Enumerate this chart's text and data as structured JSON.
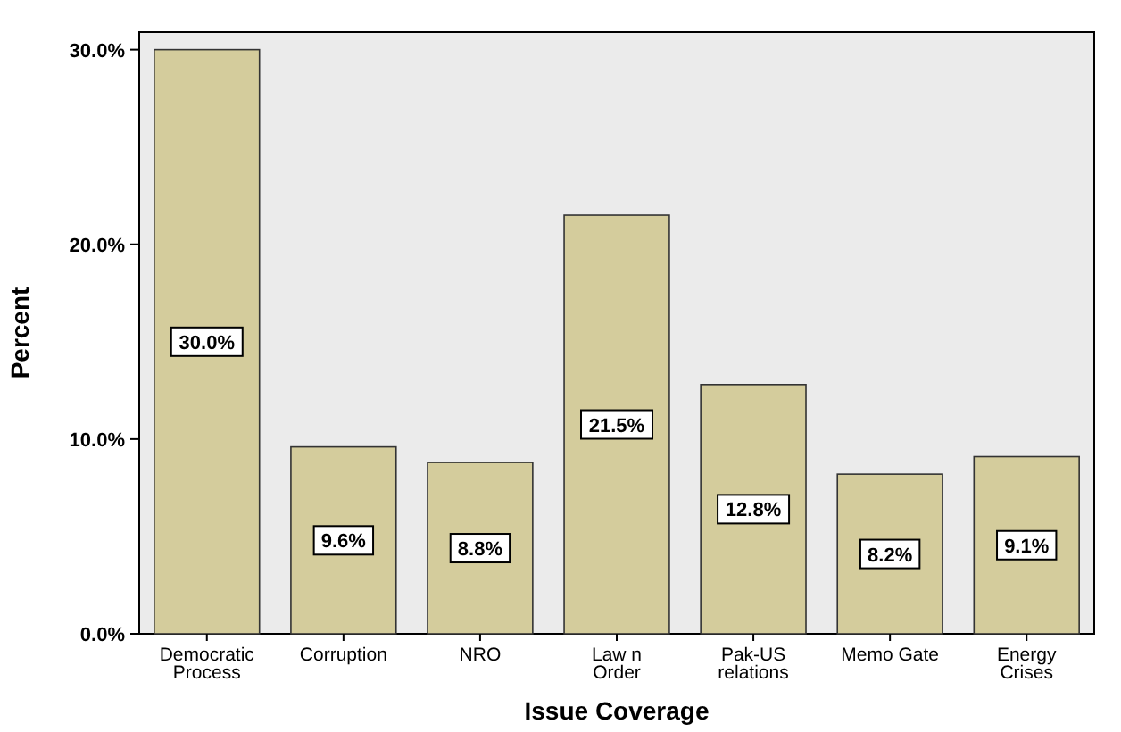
{
  "chart_data": {
    "type": "bar",
    "xlabel": "Issue Coverage",
    "ylabel": "Percent",
    "categories": [
      "Democratic Process",
      "Corruption",
      "NRO",
      "Law n Order",
      "Pak-US relations",
      "Memo Gate",
      "Energy Crises"
    ],
    "values": [
      30.0,
      9.6,
      8.8,
      21.5,
      12.8,
      8.2,
      9.1
    ],
    "value_labels": [
      "30.0%",
      "9.6%",
      "8.8%",
      "21.5%",
      "12.8%",
      "8.2%",
      "9.1%"
    ],
    "color": "#d4cc9c",
    "ylim": [
      0,
      30.9
    ],
    "yticks": [
      {
        "value": 0,
        "label": "0.0%"
      },
      {
        "value": 10,
        "label": "10.0%"
      },
      {
        "value": 20,
        "label": "20.0%"
      },
      {
        "value": 30,
        "label": "30.0%"
      }
    ],
    "grid": false
  }
}
